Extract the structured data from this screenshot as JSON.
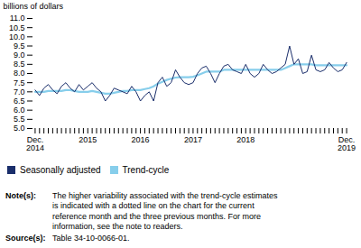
{
  "chart_data": {
    "type": "line",
    "ylabel": "billions of dollars",
    "categories": [
      "Dec.\n2014",
      null,
      null,
      null,
      null,
      null,
      null,
      null,
      null,
      null,
      null,
      null,
      "2015",
      null,
      null,
      null,
      null,
      null,
      null,
      null,
      null,
      null,
      null,
      null,
      "2016",
      null,
      null,
      null,
      null,
      null,
      null,
      null,
      null,
      null,
      null,
      null,
      "2017",
      null,
      null,
      null,
      null,
      null,
      null,
      null,
      null,
      null,
      null,
      null,
      "2018",
      null,
      null,
      null,
      null,
      null,
      null,
      null,
      null,
      null,
      null,
      null,
      null,
      null,
      null,
      null,
      null,
      null,
      null,
      null,
      null,
      null,
      null,
      "Dec.\n2019"
    ],
    "series": [
      {
        "name": "Seasonally adjusted",
        "color": "#1a2e6b",
        "values": [
          7.1,
          6.8,
          7.2,
          7.4,
          7.1,
          6.9,
          7.3,
          7.5,
          7.2,
          7.0,
          7.4,
          7.1,
          7.3,
          7.5,
          7.2,
          7.0,
          6.5,
          6.8,
          7.2,
          7.1,
          7.0,
          6.9,
          7.3,
          7.0,
          6.5,
          6.8,
          7.0,
          6.5,
          7.5,
          7.8,
          7.3,
          7.5,
          8.2,
          7.8,
          7.5,
          7.4,
          7.5,
          8.0,
          8.3,
          8.4,
          8.0,
          7.5,
          8.0,
          8.4,
          8.5,
          8.2,
          8.1,
          8.0,
          8.5,
          8.0,
          7.8,
          8.0,
          8.5,
          8.2,
          8.0,
          8.1,
          8.3,
          8.5,
          9.5,
          8.5,
          8.8,
          8.0,
          8.1,
          9.0,
          8.2,
          8.1,
          8.2,
          8.6,
          8.3,
          8.1,
          8.2,
          8.6
        ]
      },
      {
        "name": "Trend-cycle",
        "color": "#87ceeb",
        "values": [
          7.0,
          7.0,
          7.0,
          7.05,
          7.05,
          7.05,
          7.05,
          7.1,
          7.1,
          7.05,
          7.0,
          7.0,
          7.0,
          7.05,
          7.0,
          6.95,
          6.9,
          6.9,
          6.95,
          7.0,
          7.05,
          7.05,
          7.1,
          7.1,
          7.1,
          7.15,
          7.2,
          7.3,
          7.45,
          7.55,
          7.65,
          7.72,
          7.78,
          7.8,
          7.8,
          7.8,
          7.82,
          7.9,
          8.0,
          8.1,
          8.1,
          8.1,
          8.1,
          8.2,
          8.2,
          8.2,
          8.2,
          8.2,
          8.2,
          8.2,
          8.2,
          8.2,
          8.2,
          8.2,
          8.2,
          8.2,
          8.2,
          8.3,
          8.4,
          8.5,
          8.5,
          8.5,
          8.5,
          8.5,
          8.45,
          8.45,
          8.45,
          8.45,
          8.45,
          8.45,
          8.45,
          8.45
        ]
      }
    ],
    "ylim": [
      5.0,
      11.0
    ],
    "yticks": [
      {
        "value": 5,
        "label": "5.0"
      },
      5.5,
      {
        "value": 6,
        "label": "6.0"
      },
      6.5,
      {
        "value": 7,
        "label": "7.0"
      },
      7.5,
      {
        "value": 8,
        "label": "8.0"
      },
      8.5,
      {
        "value": 9,
        "label": "9.0"
      },
      9.5,
      {
        "value": 10,
        "label": "10.0"
      },
      10.5,
      {
        "value": 11,
        "label": "11.0"
      }
    ],
    "grid": false,
    "legend": "bottom",
    "annotations": [
      {
        "label": "Note(s):",
        "text": "The higher variability associated with the trend-cycle estimates\nis indicated with a dotted line on the chart for the current\nreference month and the three previous months. For more\ninformation, see the note to readers."
      },
      {
        "label": "Source(s):",
        "text": "Table 34-10-0066-01."
      }
    ]
  }
}
